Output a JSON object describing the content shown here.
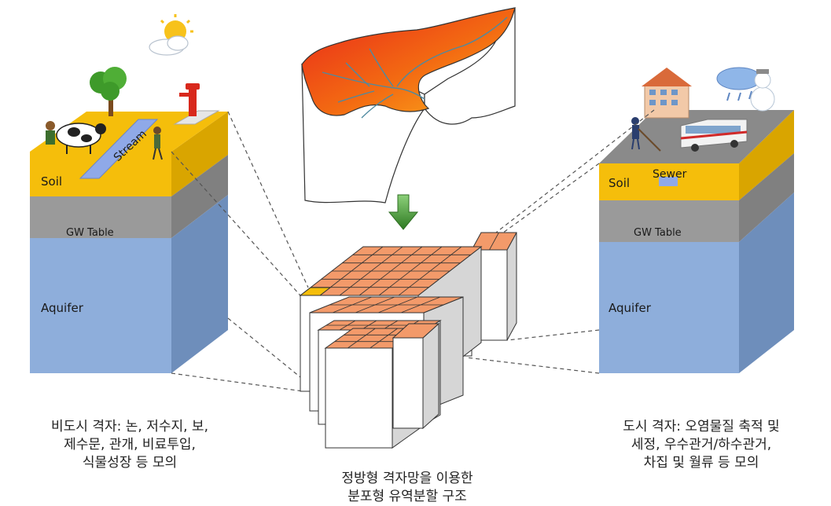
{
  "left_column": {
    "stream": "Stream",
    "soil": "Soil",
    "gw_table": "GW Table",
    "aquifer": "Aquifer",
    "caption_lines": [
      "비도시 격자: 논, 저수지, 보,",
      "제수문, 관개, 비료투입,",
      "식물성장 등 모의"
    ]
  },
  "right_column": {
    "sewer": "Sewer",
    "soil": "Soil",
    "gw_table": "GW Table",
    "aquifer": "Aquifer",
    "caption_lines": [
      "도시 격자: 오염물질 축적 및",
      "세정, 우수관거/하수관거,",
      "차집 및 월류 등 모의"
    ]
  },
  "center": {
    "caption_lines": [
      "정방형 격자망을 이용한",
      "분포형 유역분할 구조"
    ]
  },
  "colors": {
    "soil": "#F5BE0B",
    "soil_side": "#D9A500",
    "gw_table": "#9A9A9A",
    "aquifer": "#8EAEDB",
    "aquifer_side": "#6E8EBB",
    "stream": "#8FA9E8",
    "grid_top": "#F39A6A",
    "arrow": "#3C8A2E",
    "urban_top": "#888888"
  }
}
